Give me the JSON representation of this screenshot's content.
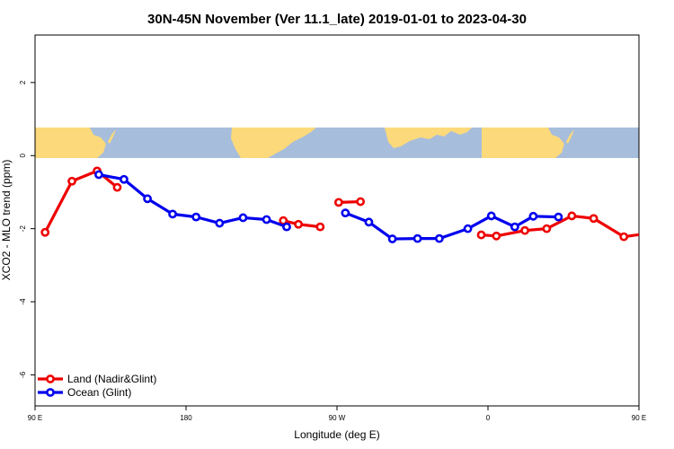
{
  "chart_data": {
    "type": "line",
    "title": "30N-45N November (Ver 11.1_late)   2019-01-01 to 2023-04-30",
    "xlabel": "Longitude (deg E)",
    "ylabel": "XCO2 - MLO trend (ppm)",
    "xlim": [
      90,
      450
    ],
    "ylim": [
      -6.85,
      3.3
    ],
    "x_ticks": [
      {
        "value": 90,
        "label": "90 E"
      },
      {
        "value": 180,
        "label": "180"
      },
      {
        "value": 270,
        "label": "90 W"
      },
      {
        "value": 360,
        "label": "0"
      },
      {
        "value": 450,
        "label": "90 E"
      },
      {
        "value": 540,
        "label": "180"
      }
    ],
    "y_ticks": [
      {
        "value": 2,
        "label": "2"
      },
      {
        "value": 0,
        "label": "0"
      },
      {
        "value": -2,
        "label": "-2"
      },
      {
        "value": -4,
        "label": "-4"
      },
      {
        "value": -6,
        "label": "-6"
      }
    ],
    "map_strip": {
      "y_range": [
        0,
        0.8
      ],
      "ocean_color": "#a7bddc",
      "land_color": "#fcd97a"
    },
    "series": [
      {
        "name": "Land (Nadir&Glint)",
        "color": "#ee0000",
        "segments": [
          {
            "x": [
              96,
              112,
              127,
              139
            ],
            "y": [
              -2.1,
              -0.7,
              -0.42,
              -0.87
            ]
          },
          {
            "x": [
              238,
              247,
              260
            ],
            "y": [
              -1.78,
              -1.88,
              -1.95
            ]
          },
          {
            "x": [
              271,
              284
            ],
            "y": [
              -1.28,
              -1.26
            ]
          },
          {
            "x": [
              356,
              365,
              382,
              395,
              410,
              423,
              441,
              457,
              471,
              486,
              493,
              500
            ],
            "y": [
              -2.17,
              -2.2,
              -2.05,
              -2.0,
              -1.65,
              -1.72,
              -2.22,
              -2.12,
              -0.7,
              -0.43,
              -0.88,
              -0.88
            ]
          }
        ]
      },
      {
        "name": "Ocean (Glint)",
        "color": "#0000ee",
        "segments": [
          {
            "x": [
              128,
              143,
              157,
              172,
              186,
              200,
              214,
              228,
              240
            ],
            "y": [
              -0.52,
              -0.65,
              -1.18,
              -1.6,
              -1.68,
              -1.85,
              -1.7,
              -1.75,
              -1.95
            ]
          },
          {
            "x": [
              275,
              289,
              303,
              318,
              331,
              348,
              362,
              376,
              387,
              402
            ],
            "y": [
              -1.57,
              -1.82,
              -2.28,
              -2.27,
              -2.27,
              -2.0,
              -1.65,
              -1.95,
              -1.66,
              -1.68
            ]
          },
          {
            "x": [
              487,
              504,
              516,
              531
            ],
            "y": [
              -0.55,
              -0.65,
              -1.18,
              -1.6
            ]
          }
        ]
      }
    ],
    "legend": {
      "position": "bottom-left"
    }
  }
}
